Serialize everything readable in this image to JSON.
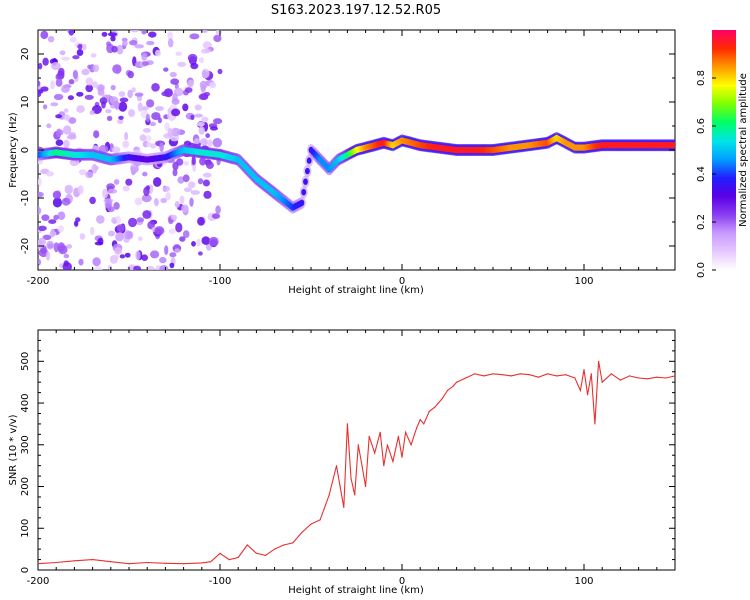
{
  "figure": {
    "title": "S163.2023.197.12.52.R05"
  },
  "chart_data": [
    {
      "type": "heatmap",
      "title": "S163.2023.197.12.52.R05",
      "xlabel": "Height of straight line (km)",
      "ylabel": "Frequency (Hz)",
      "xlim": [
        -200,
        150
      ],
      "ylim": [
        -25,
        25
      ],
      "x_ticks": [
        -200,
        -100,
        0,
        100
      ],
      "y_ticks": [
        -20,
        -10,
        0,
        10,
        20
      ],
      "grid": false,
      "colorbar": {
        "label": "Normalized spectral amplitude",
        "range": [
          0,
          1
        ],
        "ticks": [
          0.0,
          0.2,
          0.4,
          0.6,
          0.8
        ],
        "colors": [
          "#ffffff",
          "#e6c8ff",
          "#c89bff",
          "#8a3cf0",
          "#5a00e6",
          "#2020ff",
          "#00a0ff",
          "#00e6e6",
          "#00ff66",
          "#7cff00",
          "#ffff00",
          "#ff9900",
          "#ff2a00",
          "#ff0066"
        ]
      },
      "ridge": {
        "description_x": [
          -200,
          -190,
          -180,
          -170,
          -160,
          -150,
          -140,
          -130,
          -120,
          -110,
          -100,
          -90,
          -80,
          -70,
          -60,
          -55,
          -50,
          -45,
          -40,
          -35,
          -30,
          -25,
          -20,
          -15,
          -10,
          -5,
          0,
          10,
          20,
          30,
          40,
          50,
          60,
          70,
          80,
          85,
          90,
          95,
          100,
          110,
          120,
          130,
          140,
          150
        ],
        "frequency": [
          -1,
          -0.5,
          -1,
          -1,
          -2,
          -1.5,
          -2,
          -1.5,
          0,
          -0.5,
          -1,
          -2,
          -6,
          -9,
          -12,
          -11,
          0,
          -2,
          -4,
          -2,
          -1,
          0,
          0.5,
          1,
          1.5,
          1,
          2,
          1,
          0.5,
          0,
          0,
          0,
          0.5,
          1,
          1.5,
          2.5,
          1.5,
          0.5,
          0.5,
          1,
          1,
          1,
          1,
          1
        ],
        "amplitude": [
          0.4,
          0.6,
          0.55,
          0.5,
          0.5,
          0.35,
          0.3,
          0.35,
          0.5,
          0.55,
          0.55,
          0.5,
          0.5,
          0.5,
          0.4,
          0.35,
          0.35,
          0.45,
          0.45,
          0.5,
          0.6,
          0.75,
          0.85,
          0.9,
          0.95,
          0.8,
          0.85,
          0.9,
          0.95,
          0.95,
          0.95,
          0.9,
          0.85,
          0.85,
          0.9,
          0.8,
          0.85,
          0.85,
          0.85,
          0.95,
          0.95,
          0.95,
          0.95,
          0.95
        ]
      }
    },
    {
      "type": "line",
      "xlabel": "Height of straight line (km)",
      "ylabel": "SNR (10 * v/v)",
      "xlim": [
        -200,
        150
      ],
      "ylim": [
        0,
        575
      ],
      "x_ticks": [
        -200,
        -100,
        0,
        100
      ],
      "y_ticks": [
        0,
        100,
        200,
        300,
        400,
        500
      ],
      "grid": false,
      "series": [
        {
          "color": "#e8302f",
          "x": [
            -200,
            -190,
            -180,
            -170,
            -160,
            -150,
            -140,
            -130,
            -120,
            -110,
            -105,
            -100,
            -95,
            -90,
            -85,
            -80,
            -75,
            -70,
            -65,
            -60,
            -55,
            -50,
            -45,
            -40,
            -36,
            -34,
            -32,
            -30,
            -28,
            -26,
            -24,
            -22,
            -20,
            -18,
            -15,
            -12,
            -10,
            -8,
            -5,
            -2,
            0,
            2,
            5,
            8,
            10,
            12,
            15,
            18,
            20,
            22,
            25,
            28,
            30,
            35,
            40,
            45,
            50,
            55,
            60,
            65,
            70,
            75,
            80,
            85,
            90,
            95,
            98,
            100,
            102,
            104,
            106,
            108,
            110,
            115,
            120,
            125,
            130,
            135,
            140,
            145,
            150
          ],
          "y": [
            15,
            18,
            22,
            25,
            20,
            15,
            18,
            16,
            15,
            17,
            20,
            40,
            25,
            30,
            60,
            40,
            35,
            50,
            60,
            65,
            90,
            110,
            120,
            180,
            250,
            200,
            150,
            350,
            220,
            180,
            300,
            250,
            200,
            320,
            280,
            330,
            250,
            300,
            260,
            320,
            270,
            330,
            300,
            340,
            360,
            350,
            380,
            390,
            400,
            410,
            430,
            440,
            450,
            460,
            470,
            465,
            470,
            468,
            465,
            470,
            468,
            462,
            470,
            465,
            468,
            460,
            430,
            480,
            420,
            470,
            350,
            500,
            450,
            470,
            455,
            465,
            460,
            458,
            462,
            460,
            465
          ]
        }
      ]
    }
  ]
}
